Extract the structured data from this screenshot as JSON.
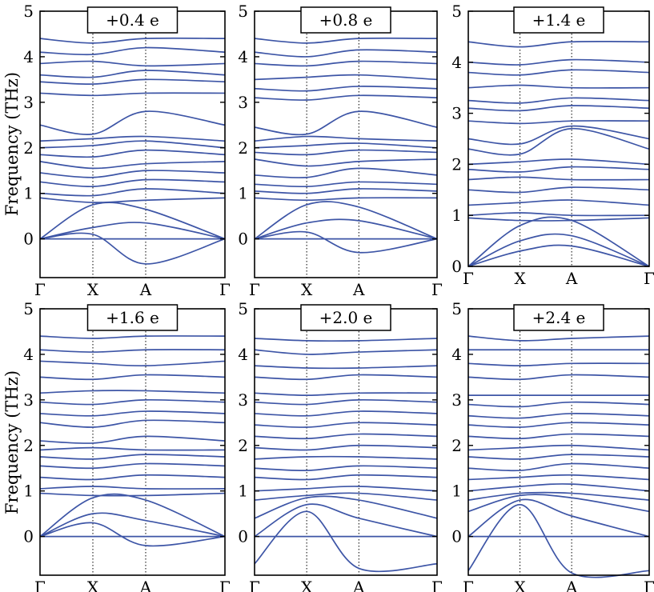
{
  "figure": {
    "ylabel": "Frequency (THz)"
  },
  "chart_data": [
    {
      "type": "line",
      "title": "+0.4 e",
      "xticks": [
        "Γ",
        "X",
        "A",
        "Γ"
      ],
      "x": [
        0,
        1,
        2,
        3.5
      ],
      "ylim": [
        -0.85,
        5
      ],
      "yticks": [
        0,
        1,
        2,
        3,
        4,
        5
      ],
      "series": [
        {
          "values": [
            0,
            0,
            0,
            0
          ]
        },
        {
          "values": [
            0,
            0.1,
            -0.55,
            0
          ]
        },
        {
          "values": [
            0,
            0.25,
            0.35,
            0
          ]
        },
        {
          "values": [
            0,
            0.75,
            0.65,
            0
          ]
        },
        {
          "values": [
            0.9,
            0.8,
            0.85,
            0.9
          ]
        },
        {
          "values": [
            1.0,
            0.95,
            1.1,
            1.0
          ]
        },
        {
          "values": [
            1.25,
            1.15,
            1.3,
            1.25
          ]
        },
        {
          "values": [
            1.45,
            1.35,
            1.5,
            1.45
          ]
        },
        {
          "values": [
            1.7,
            1.55,
            1.65,
            1.7
          ]
        },
        {
          "values": [
            1.85,
            1.8,
            1.95,
            1.85
          ]
        },
        {
          "values": [
            2.0,
            2.05,
            2.15,
            2.0
          ]
        },
        {
          "values": [
            2.15,
            2.2,
            2.25,
            2.15
          ]
        },
        {
          "values": [
            2.5,
            2.3,
            2.8,
            2.5
          ]
        },
        {
          "values": [
            3.2,
            3.15,
            3.2,
            3.2
          ]
        },
        {
          "values": [
            3.45,
            3.4,
            3.5,
            3.45
          ]
        },
        {
          "values": [
            3.6,
            3.55,
            3.7,
            3.6
          ]
        },
        {
          "values": [
            3.85,
            3.9,
            3.8,
            3.85
          ]
        },
        {
          "values": [
            4.1,
            4.05,
            4.2,
            4.1
          ]
        },
        {
          "values": [
            4.4,
            4.3,
            4.4,
            4.4
          ]
        }
      ]
    },
    {
      "type": "line",
      "title": "+0.8 e",
      "xticks": [
        "Γ",
        "X",
        "A",
        "Γ"
      ],
      "x": [
        0,
        1,
        2,
        3.5
      ],
      "ylim": [
        -0.85,
        5
      ],
      "yticks": [
        0,
        1,
        2,
        3,
        4,
        5
      ],
      "series": [
        {
          "values": [
            0,
            0,
            0,
            0
          ]
        },
        {
          "values": [
            0,
            0.15,
            -0.3,
            0
          ]
        },
        {
          "values": [
            0,
            0.35,
            0.4,
            0
          ]
        },
        {
          "values": [
            0,
            0.75,
            0.7,
            0
          ]
        },
        {
          "values": [
            0.9,
            0.85,
            0.9,
            0.9
          ]
        },
        {
          "values": [
            1.05,
            1.0,
            1.1,
            1.05
          ]
        },
        {
          "values": [
            1.2,
            1.15,
            1.25,
            1.2
          ]
        },
        {
          "values": [
            1.4,
            1.35,
            1.55,
            1.4
          ]
        },
        {
          "values": [
            1.75,
            1.6,
            1.7,
            1.75
          ]
        },
        {
          "values": [
            1.9,
            1.85,
            1.95,
            1.9
          ]
        },
        {
          "values": [
            2.0,
            2.05,
            2.1,
            2.0
          ]
        },
        {
          "values": [
            2.15,
            2.25,
            2.2,
            2.15
          ]
        },
        {
          "values": [
            2.45,
            2.3,
            2.8,
            2.45
          ]
        },
        {
          "values": [
            3.1,
            3.05,
            3.15,
            3.1
          ]
        },
        {
          "values": [
            3.3,
            3.25,
            3.35,
            3.3
          ]
        },
        {
          "values": [
            3.5,
            3.55,
            3.6,
            3.5
          ]
        },
        {
          "values": [
            3.85,
            3.8,
            3.9,
            3.85
          ]
        },
        {
          "values": [
            4.1,
            4.0,
            4.15,
            4.1
          ]
        },
        {
          "values": [
            4.4,
            4.3,
            4.4,
            4.4
          ]
        }
      ]
    },
    {
      "type": "line",
      "title": "+1.4 e",
      "xticks": [
        "Γ",
        "X",
        "A",
        "Γ"
      ],
      "x": [
        0,
        1,
        2,
        3.5
      ],
      "ylim": [
        0,
        5
      ],
      "yticks": [
        0,
        1,
        2,
        3,
        4,
        5
      ],
      "series": [
        {
          "values": [
            0,
            0.3,
            0.4,
            0
          ]
        },
        {
          "values": [
            0,
            0.5,
            0.6,
            0
          ]
        },
        {
          "values": [
            0,
            0.8,
            0.9,
            0
          ]
        },
        {
          "values": [
            0.95,
            0.9,
            0.9,
            0.95
          ]
        },
        {
          "values": [
            1.0,
            1.05,
            1.0,
            1.0
          ]
        },
        {
          "values": [
            1.2,
            1.25,
            1.3,
            1.2
          ]
        },
        {
          "values": [
            1.5,
            1.45,
            1.55,
            1.5
          ]
        },
        {
          "values": [
            1.7,
            1.75,
            1.7,
            1.7
          ]
        },
        {
          "values": [
            1.9,
            1.85,
            1.95,
            1.9
          ]
        },
        {
          "values": [
            2.0,
            2.05,
            2.1,
            2.0
          ]
        },
        {
          "values": [
            2.3,
            2.2,
            2.7,
            2.3
          ]
        },
        {
          "values": [
            2.5,
            2.4,
            2.75,
            2.5
          ]
        },
        {
          "values": [
            2.85,
            2.8,
            2.85,
            2.85
          ]
        },
        {
          "values": [
            3.1,
            3.05,
            3.15,
            3.1
          ]
        },
        {
          "values": [
            3.25,
            3.2,
            3.3,
            3.25
          ]
        },
        {
          "values": [
            3.5,
            3.55,
            3.5,
            3.5
          ]
        },
        {
          "values": [
            3.8,
            3.75,
            3.85,
            3.8
          ]
        },
        {
          "values": [
            4.0,
            3.95,
            4.05,
            4.0
          ]
        },
        {
          "values": [
            4.4,
            4.3,
            4.4,
            4.4
          ]
        }
      ]
    },
    {
      "type": "line",
      "title": "+1.6 e",
      "xticks": [
        "Γ",
        "X",
        "A",
        "Γ"
      ],
      "x": [
        0,
        1,
        2,
        3.5
      ],
      "ylim": [
        -0.85,
        5
      ],
      "yticks": [
        0,
        1,
        2,
        3,
        4,
        5
      ],
      "series": [
        {
          "values": [
            0,
            0,
            0,
            0
          ]
        },
        {
          "values": [
            0,
            0.3,
            -0.2,
            0
          ]
        },
        {
          "values": [
            0,
            0.5,
            0.35,
            0
          ]
        },
        {
          "values": [
            0,
            0.85,
            0.8,
            0
          ]
        },
        {
          "values": [
            0.95,
            0.9,
            0.9,
            0.95
          ]
        },
        {
          "values": [
            1.05,
            1.1,
            1.05,
            1.05
          ]
        },
        {
          "values": [
            1.3,
            1.25,
            1.35,
            1.3
          ]
        },
        {
          "values": [
            1.55,
            1.5,
            1.6,
            1.55
          ]
        },
        {
          "values": [
            1.75,
            1.7,
            1.8,
            1.75
          ]
        },
        {
          "values": [
            1.9,
            1.95,
            1.9,
            1.9
          ]
        },
        {
          "values": [
            2.1,
            2.05,
            2.2,
            2.1
          ]
        },
        {
          "values": [
            2.5,
            2.4,
            2.55,
            2.5
          ]
        },
        {
          "values": [
            2.7,
            2.65,
            2.75,
            2.7
          ]
        },
        {
          "values": [
            2.95,
            2.9,
            3.0,
            2.95
          ]
        },
        {
          "values": [
            3.15,
            3.2,
            3.2,
            3.15
          ]
        },
        {
          "values": [
            3.5,
            3.45,
            3.55,
            3.5
          ]
        },
        {
          "values": [
            3.85,
            3.8,
            3.75,
            3.85
          ]
        },
        {
          "values": [
            4.1,
            4.05,
            4.1,
            4.1
          ]
        },
        {
          "values": [
            4.4,
            4.35,
            4.4,
            4.4
          ]
        }
      ]
    },
    {
      "type": "line",
      "title": "+2.0 e",
      "xticks": [
        "Γ",
        "X",
        "A",
        "Γ"
      ],
      "x": [
        0,
        1,
        2,
        3.5
      ],
      "ylim": [
        -0.85,
        5
      ],
      "yticks": [
        0,
        1,
        2,
        3,
        4,
        5
      ],
      "series": [
        {
          "values": [
            0,
            0,
            0,
            0
          ]
        },
        {
          "values": [
            -0.6,
            0.55,
            -0.7,
            -0.6
          ]
        },
        {
          "values": [
            0,
            0.7,
            0.4,
            0
          ]
        },
        {
          "values": [
            0.4,
            0.85,
            0.8,
            0.4
          ]
        },
        {
          "values": [
            0.8,
            0.9,
            0.95,
            0.8
          ]
        },
        {
          "values": [
            1.0,
            1.05,
            1.1,
            1.0
          ]
        },
        {
          "values": [
            1.3,
            1.25,
            1.35,
            1.3
          ]
        },
        {
          "values": [
            1.5,
            1.45,
            1.55,
            1.5
          ]
        },
        {
          "values": [
            1.7,
            1.75,
            1.75,
            1.7
          ]
        },
        {
          "values": [
            1.95,
            1.9,
            2.0,
            1.95
          ]
        },
        {
          "values": [
            2.2,
            2.15,
            2.25,
            2.2
          ]
        },
        {
          "values": [
            2.45,
            2.4,
            2.5,
            2.45
          ]
        },
        {
          "values": [
            2.7,
            2.65,
            2.75,
            2.7
          ]
        },
        {
          "values": [
            2.95,
            2.9,
            3.0,
            2.95
          ]
        },
        {
          "values": [
            3.15,
            3.1,
            3.15,
            3.15
          ]
        },
        {
          "values": [
            3.5,
            3.45,
            3.55,
            3.5
          ]
        },
        {
          "values": [
            3.75,
            3.7,
            3.7,
            3.75
          ]
        },
        {
          "values": [
            4.1,
            4.0,
            4.05,
            4.1
          ]
        },
        {
          "values": [
            4.35,
            4.3,
            4.3,
            4.35
          ]
        }
      ]
    },
    {
      "type": "line",
      "title": "+2.4 e",
      "xticks": [
        "Γ",
        "X",
        "A",
        "Γ"
      ],
      "x": [
        0,
        1,
        2,
        3.5
      ],
      "ylim": [
        -0.85,
        5
      ],
      "yticks": [
        0,
        1,
        2,
        3,
        4,
        5
      ],
      "series": [
        {
          "values": [
            0,
            0,
            0,
            0
          ]
        },
        {
          "values": [
            -0.75,
            0.7,
            -0.8,
            -0.75
          ]
        },
        {
          "values": [
            0,
            0.8,
            0.45,
            0
          ]
        },
        {
          "values": [
            0.55,
            0.9,
            0.85,
            0.55
          ]
        },
        {
          "values": [
            0.8,
            0.95,
            0.95,
            0.8
          ]
        },
        {
          "values": [
            1.0,
            1.1,
            1.15,
            1.0
          ]
        },
        {
          "values": [
            1.25,
            1.3,
            1.35,
            1.25
          ]
        },
        {
          "values": [
            1.5,
            1.45,
            1.6,
            1.5
          ]
        },
        {
          "values": [
            1.75,
            1.7,
            1.8,
            1.75
          ]
        },
        {
          "values": [
            1.9,
            1.95,
            2.0,
            1.9
          ]
        },
        {
          "values": [
            2.2,
            2.15,
            2.25,
            2.2
          ]
        },
        {
          "values": [
            2.45,
            2.4,
            2.5,
            2.45
          ]
        },
        {
          "values": [
            2.65,
            2.6,
            2.7,
            2.65
          ]
        },
        {
          "values": [
            2.9,
            2.85,
            2.95,
            2.9
          ]
        },
        {
          "values": [
            3.1,
            3.1,
            3.1,
            3.1
          ]
        },
        {
          "values": [
            3.5,
            3.45,
            3.55,
            3.5
          ]
        },
        {
          "values": [
            3.8,
            3.75,
            3.8,
            3.8
          ]
        },
        {
          "values": [
            4.1,
            4.1,
            4.1,
            4.1
          ]
        },
        {
          "values": [
            4.4,
            4.3,
            4.35,
            4.4
          ]
        }
      ]
    }
  ],
  "colors": {
    "band": "#3d55a6",
    "zero_line": "#e8332a",
    "frame": "#000000",
    "vline": "#000000"
  }
}
